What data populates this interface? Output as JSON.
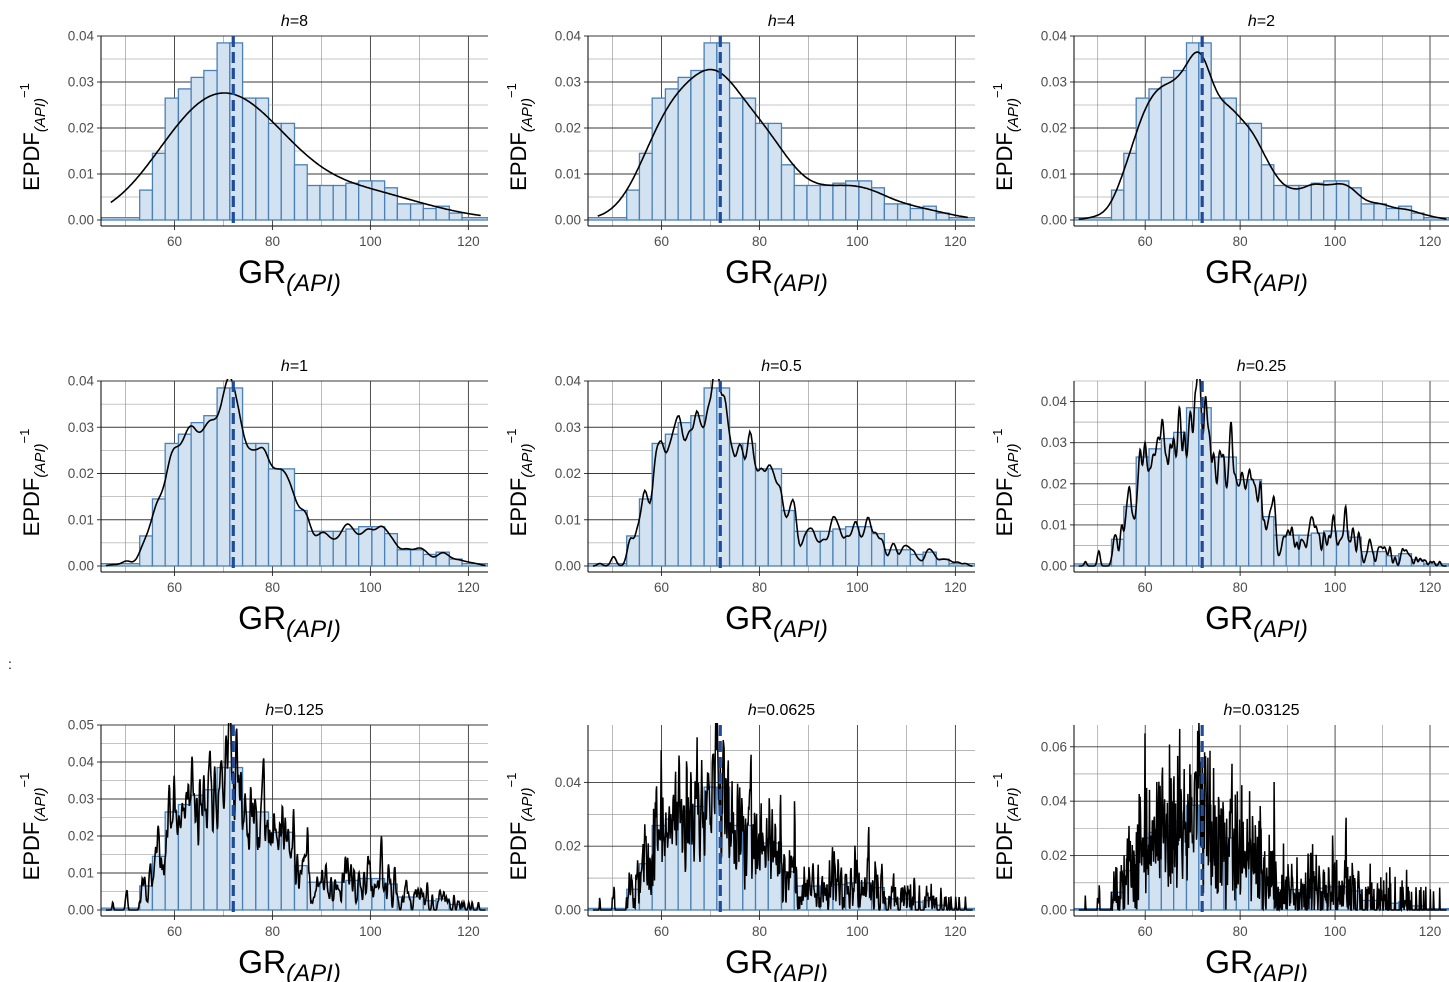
{
  "stray_mark": ":",
  "colors": {
    "bar_fill": "#d3e2f0",
    "bar_stroke": "#4a80b6",
    "median_line": "#1f4b9c",
    "density": "#000000",
    "grid": "#000000"
  },
  "x_label": {
    "main": "GR",
    "sub": "(API)"
  },
  "y_label": {
    "main": "EPDF",
    "sub": "(API)",
    "sup": "−1"
  },
  "chart_data": [
    {
      "type": "histogram+density",
      "title": "h=8",
      "h": 8,
      "xlim": [
        45,
        124
      ],
      "ylim": [
        0,
        0.04
      ],
      "yticks": [
        "0.00",
        "0.01",
        "0.02",
        "0.03",
        "0.04"
      ],
      "xticks": [
        60,
        80,
        100,
        120
      ],
      "median": 72
    },
    {
      "type": "histogram+density",
      "title": "h=4",
      "h": 4,
      "xlim": [
        45,
        124
      ],
      "ylim": [
        0,
        0.04
      ],
      "yticks": [
        "0.00",
        "0.01",
        "0.02",
        "0.03",
        "0.04"
      ],
      "xticks": [
        60,
        80,
        100,
        120
      ],
      "median": 72
    },
    {
      "type": "histogram+density",
      "title": "h=2",
      "h": 2,
      "xlim": [
        45,
        124
      ],
      "ylim": [
        0,
        0.04
      ],
      "yticks": [
        "0.00",
        "0.01",
        "0.02",
        "0.03",
        "0.04"
      ],
      "xticks": [
        60,
        80,
        100,
        120
      ],
      "median": 72
    },
    {
      "type": "histogram+density",
      "title": "h=1",
      "h": 1,
      "xlim": [
        45,
        124
      ],
      "ylim": [
        0,
        0.04
      ],
      "yticks": [
        "0.00",
        "0.01",
        "0.02",
        "0.03",
        "0.04"
      ],
      "xticks": [
        60,
        80,
        100,
        120
      ],
      "median": 72
    },
    {
      "type": "histogram+density",
      "title": "h=0.5",
      "h": 0.5,
      "xlim": [
        45,
        124
      ],
      "ylim": [
        0,
        0.04
      ],
      "yticks": [
        "0.00",
        "0.01",
        "0.02",
        "0.03",
        "0.04"
      ],
      "xticks": [
        60,
        80,
        100,
        120
      ],
      "median": 72
    },
    {
      "type": "histogram+density",
      "title": "h=0.25",
      "h": 0.25,
      "xlim": [
        45,
        124
      ],
      "ylim": [
        0,
        0.045
      ],
      "yticks": [
        "0.00",
        "0.01",
        "0.02",
        "0.03",
        "0.04"
      ],
      "xticks": [
        60,
        80,
        100,
        120
      ],
      "median": 72
    },
    {
      "type": "histogram+density",
      "title": "h=0.125",
      "h": 0.125,
      "xlim": [
        45,
        124
      ],
      "ylim": [
        0,
        0.05
      ],
      "yticks": [
        "0.00",
        "0.01",
        "0.02",
        "0.03",
        "0.04",
        "0.05"
      ],
      "xticks": [
        60,
        80,
        100,
        120
      ],
      "median": 72
    },
    {
      "type": "histogram+density",
      "title": "h=0.0625",
      "h": 0.0625,
      "xlim": [
        45,
        124
      ],
      "ylim": [
        0,
        0.058
      ],
      "yticks": [
        "0.00",
        "0.02",
        "0.04"
      ],
      "xticks": [
        60,
        80,
        100,
        120
      ],
      "median": 72
    },
    {
      "type": "histogram+density",
      "title": "h=0.03125",
      "h": 0.03125,
      "xlim": [
        45,
        124
      ],
      "ylim": [
        0,
        0.068
      ],
      "yticks": [
        "0.00",
        "0.02",
        "0.04",
        "0.06"
      ],
      "xticks": [
        60,
        80,
        100,
        120
      ],
      "median": 72
    }
  ],
  "histogram": {
    "bin_width": 2.63,
    "bins": [
      {
        "x0": 45.0,
        "x1": 52.9,
        "v": 0.0005
      },
      {
        "x0": 52.9,
        "x1": 55.5,
        "v": 0.0065
      },
      {
        "x0": 55.5,
        "x1": 58.1,
        "v": 0.0145
      },
      {
        "x0": 58.1,
        "x1": 60.8,
        "v": 0.0265
      },
      {
        "x0": 60.8,
        "x1": 63.4,
        "v": 0.0285
      },
      {
        "x0": 63.4,
        "x1": 66.0,
        "v": 0.031
      },
      {
        "x0": 66.0,
        "x1": 68.7,
        "v": 0.0325
      },
      {
        "x0": 68.7,
        "x1": 71.3,
        "v": 0.0385
      },
      {
        "x0": 71.3,
        "x1": 73.9,
        "v": 0.0385
      },
      {
        "x0": 73.9,
        "x1": 76.6,
        "v": 0.0265
      },
      {
        "x0": 76.6,
        "x1": 79.2,
        "v": 0.0265
      },
      {
        "x0": 79.2,
        "x1": 81.8,
        "v": 0.021
      },
      {
        "x0": 81.8,
        "x1": 84.5,
        "v": 0.021
      },
      {
        "x0": 84.5,
        "x1": 87.1,
        "v": 0.012
      },
      {
        "x0": 87.1,
        "x1": 89.7,
        "v": 0.0075
      },
      {
        "x0": 89.7,
        "x1": 92.4,
        "v": 0.0075
      },
      {
        "x0": 92.4,
        "x1": 95.0,
        "v": 0.0075
      },
      {
        "x0": 95.0,
        "x1": 97.6,
        "v": 0.008
      },
      {
        "x0": 97.6,
        "x1": 100.3,
        "v": 0.0085
      },
      {
        "x0": 100.3,
        "x1": 102.9,
        "v": 0.0085
      },
      {
        "x0": 102.9,
        "x1": 105.5,
        "v": 0.007
      },
      {
        "x0": 105.5,
        "x1": 108.2,
        "v": 0.0035
      },
      {
        "x0": 108.2,
        "x1": 110.8,
        "v": 0.0035
      },
      {
        "x0": 110.8,
        "x1": 113.4,
        "v": 0.0025
      },
      {
        "x0": 113.4,
        "x1": 116.1,
        "v": 0.003
      },
      {
        "x0": 116.1,
        "x1": 118.7,
        "v": 0.0015
      },
      {
        "x0": 118.7,
        "x1": 124.0,
        "v": 0.0005
      }
    ]
  }
}
